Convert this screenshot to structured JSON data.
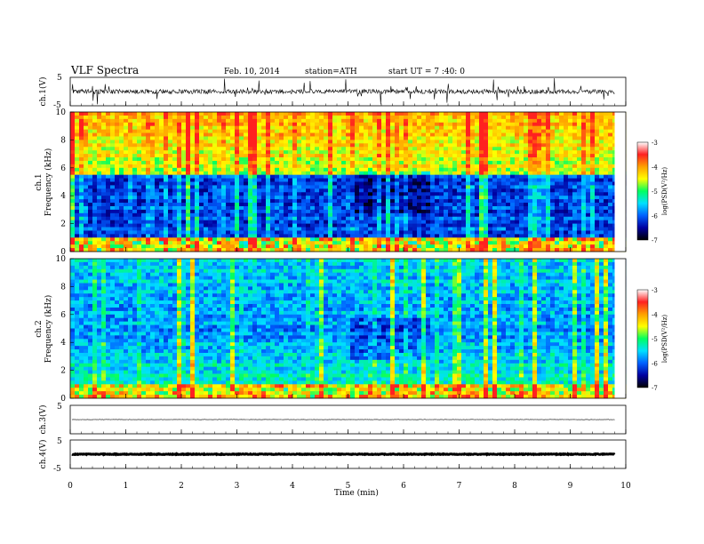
{
  "header": {
    "title": "VLF  Spectra",
    "date": "Feb. 10, 2014",
    "station": "station=ATH",
    "start": "start  UT  =   7  :40: 0"
  },
  "colorbar_label": "log(PSD(V²/Hz)",
  "colors": {
    "cb_stops": [
      "#ffffff",
      "#ff2020",
      "#ffa000",
      "#ffff00",
      "#00ff60",
      "#00e0ff",
      "#0060ff",
      "#0000a0",
      "#000000"
    ],
    "trace": "#000000"
  },
  "chart_data": [
    {
      "type": "line",
      "name": "ch.1",
      "ylabel": "ch.1(V)",
      "ylim": [
        -5,
        5
      ],
      "yticks": [
        "5",
        "-5"
      ],
      "description_level": "noisy trace around 0 V with spikes"
    },
    {
      "type": "heatmap",
      "name": "ch.1 spectrogram",
      "ylabel": "ch.1",
      "ylabel2": "Frequency (kHz)",
      "ylim": [
        0,
        10
      ],
      "yticks": [
        "0",
        "2",
        "4",
        "6",
        "8",
        "10"
      ],
      "colorbar_range": [
        -7,
        -3
      ],
      "colorbar_ticks": [
        "-3",
        "-4",
        "-5",
        "-6",
        "-7"
      ]
    },
    {
      "type": "heatmap",
      "name": "ch.2 spectrogram",
      "ylabel": "ch.2",
      "ylabel2": "Frequency (kHz)",
      "ylim": [
        0,
        10
      ],
      "yticks": [
        "0",
        "2",
        "4",
        "6",
        "8",
        "10"
      ],
      "colorbar_range": [
        -7,
        -3
      ],
      "colorbar_ticks": [
        "-3",
        "-4",
        "-5",
        "-6",
        "-7"
      ]
    },
    {
      "type": "line",
      "name": "ch.3",
      "ylabel": "ch.3(V)",
      "ylim": [
        -5,
        5
      ],
      "yticks": [
        "5"
      ]
    },
    {
      "type": "line",
      "name": "ch.4",
      "ylabel": "ch.4(V)",
      "ylim": [
        -5,
        5
      ],
      "yticks": [
        "5",
        "-5"
      ],
      "xlabel": "Time  (min)",
      "xlim": [
        0,
        10
      ],
      "xticks": [
        "0",
        "1",
        "2",
        "3",
        "4",
        "5",
        "6",
        "7",
        "8",
        "9",
        "10"
      ]
    }
  ]
}
